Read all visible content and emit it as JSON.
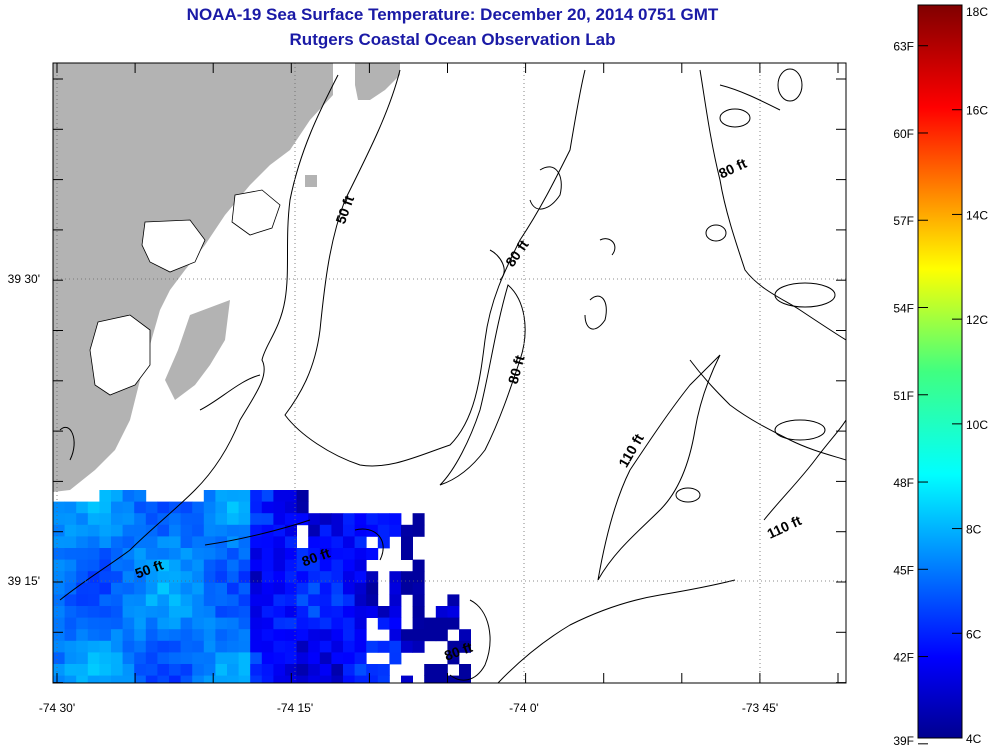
{
  "chart_data": {
    "type": "heatmap",
    "title": "NOAA-19 Sea Surface Temperature:  December 20, 2014 0751 GMT",
    "subtitle": "Rutgers Coastal Ocean Observation Lab",
    "x_ticks": [
      "-74 30'",
      "-74 15'",
      "-74 0'",
      "-73 45'"
    ],
    "y_ticks": [
      "39 30'",
      "39 15'"
    ],
    "colorbar": {
      "celsius_labels": [
        "18C",
        "16C",
        "14C",
        "12C",
        "10C",
        "8C",
        "6C",
        "4C"
      ],
      "fahrenheit_labels": [
        "63F",
        "60F",
        "57F",
        "54F",
        "51F",
        "48F",
        "45F",
        "42F",
        "39F"
      ],
      "range_c": [
        4,
        18
      ]
    },
    "contour_labels": [
      {
        "text": "50 ft",
        "x": -74.188,
        "y": 39.556
      },
      {
        "text": "80 ft",
        "x": -74.005,
        "y": 39.519
      },
      {
        "text": "80 ft",
        "x": -73.777,
        "y": 39.588
      },
      {
        "text": "80 ft",
        "x": -74.005,
        "y": 39.424
      },
      {
        "text": "110 ft",
        "x": -73.883,
        "y": 39.356
      },
      {
        "text": "110 ft",
        "x": -73.722,
        "y": 39.291
      },
      {
        "text": "50 ft",
        "x": -74.4,
        "y": 39.256
      },
      {
        "text": "80 ft",
        "x": -74.222,
        "y": 39.266
      },
      {
        "text": "80 ft",
        "x": -74.07,
        "y": 39.188
      }
    ],
    "land_color": "#b3b3b3",
    "grid": true
  }
}
